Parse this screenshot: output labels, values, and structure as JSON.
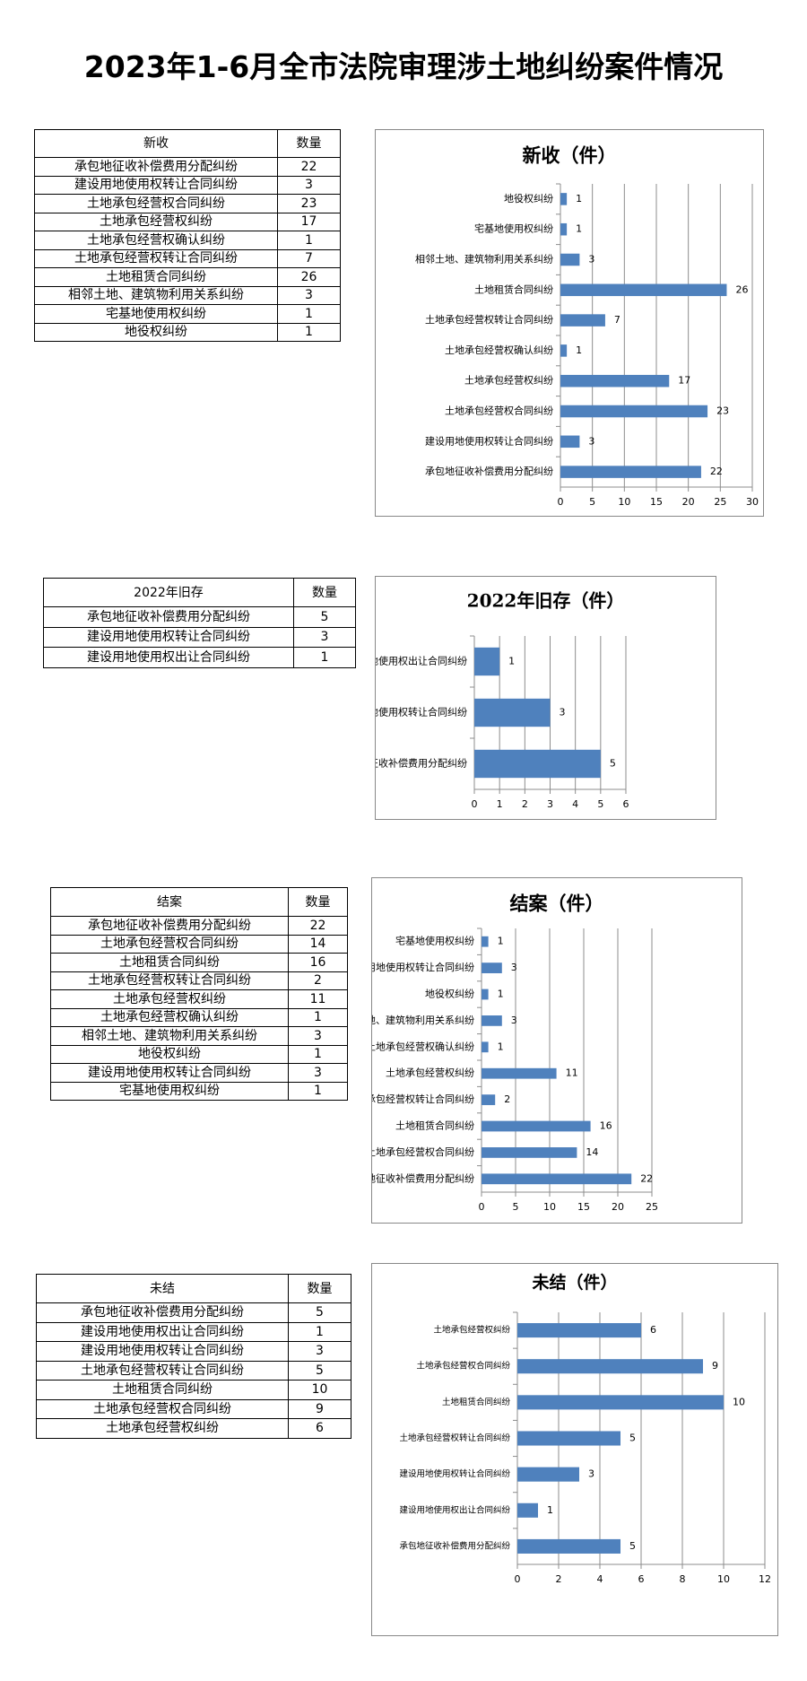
{
  "title": "2023年1-6月全市法院审理涉土地纠纷案件情况",
  "tables": [
    {
      "header": [
        "新收",
        "数量"
      ],
      "rows": [
        [
          "承包地征收补偿费用分配纠纷",
          "22"
        ],
        [
          "建设用地使用权转让合同纠纷",
          "3"
        ],
        [
          "土地承包经营权合同纠纷",
          "23"
        ],
        [
          "土地承包经营权纠纷",
          "17"
        ],
        [
          "土地承包经营权确认纠纷",
          "1"
        ],
        [
          "土地承包经营权转让合同纠纷",
          "7"
        ],
        [
          "土地租赁合同纠纷",
          "26"
        ],
        [
          "相邻土地、建筑物利用关系纠纷",
          "3"
        ],
        [
          "宅基地使用权纠纷",
          "1"
        ],
        [
          "地役权纠纷",
          "1"
        ]
      ]
    },
    {
      "header": [
        "2022年旧存",
        "数量"
      ],
      "rows": [
        [
          "承包地征收补偿费用分配纠纷",
          "5"
        ],
        [
          "建设用地使用权转让合同纠纷",
          "3"
        ],
        [
          "建设用地使用权出让合同纠纷",
          "1"
        ]
      ]
    },
    {
      "header": [
        "结案",
        "数量"
      ],
      "rows": [
        [
          "承包地征收补偿费用分配纠纷",
          "22"
        ],
        [
          "土地承包经营权合同纠纷",
          "14"
        ],
        [
          "土地租赁合同纠纷",
          "16"
        ],
        [
          "土地承包经营权转让合同纠纷",
          "2"
        ],
        [
          "土地承包经营权纠纷",
          "11"
        ],
        [
          "土地承包经营权确认纠纷",
          "1"
        ],
        [
          "相邻土地、建筑物利用关系纠纷",
          "3"
        ],
        [
          "地役权纠纷",
          "1"
        ],
        [
          "建设用地使用权转让合同纠纷",
          "3"
        ],
        [
          "宅基地使用权纠纷",
          "1"
        ]
      ]
    },
    {
      "header": [
        "未结",
        "数量"
      ],
      "rows": [
        [
          "承包地征收补偿费用分配纠纷",
          "5"
        ],
        [
          "建设用地使用权出让合同纠纷",
          "1"
        ],
        [
          "建设用地使用权转让合同纠纷",
          "3"
        ],
        [
          "土地承包经营权转让合同纠纷",
          "5"
        ],
        [
          "土地租赁合同纠纷",
          "10"
        ],
        [
          "土地承包经营权合同纠纷",
          "9"
        ],
        [
          "土地承包经营权纠纷",
          "6"
        ]
      ]
    }
  ],
  "chart_data": [
    {
      "type": "bar",
      "orientation": "horizontal",
      "title": "新收（件）",
      "bar_color": "#4f81bd",
      "grid": true,
      "xlim": [
        0,
        30
      ],
      "xticks": [
        0,
        5,
        10,
        15,
        20,
        25,
        30
      ],
      "categories": [
        "地役权纠纷",
        "宅基地使用权纠纷",
        "相邻土地、建筑物利用关系纠纷",
        "土地租赁合同纠纷",
        "土地承包经营权转让合同纠纷",
        "土地承包经营权确认纠纷",
        "土地承包经营权纠纷",
        "土地承包经营权合同纠纷",
        "建设用地使用权转让合同纠纷",
        "承包地征收补偿费用分配纠纷"
      ],
      "values": [
        1,
        1,
        3,
        26,
        7,
        1,
        17,
        23,
        3,
        22
      ]
    },
    {
      "type": "bar",
      "orientation": "horizontal",
      "title": "2022年旧存（件）",
      "bar_color": "#4f81bd",
      "grid": true,
      "xlim": [
        0,
        6
      ],
      "xticks": [
        0,
        1,
        2,
        3,
        4,
        5,
        6
      ],
      "categories": [
        "建设用地使用权出让合同纠纷",
        "建设用地使用权转让合同纠纷",
        "承包地征收补偿费用分配纠纷"
      ],
      "values": [
        1,
        3,
        5
      ]
    },
    {
      "type": "bar",
      "orientation": "horizontal",
      "title": "结案（件）",
      "bar_color": "#4f81bd",
      "grid": true,
      "xlim": [
        0,
        25
      ],
      "xticks": [
        0,
        5,
        10,
        15,
        20,
        25
      ],
      "categories": [
        "宅基地使用权纠纷",
        "建设用地使用权转让合同纠纷",
        "地役权纠纷",
        "相邻土地、建筑物利用关系纠纷",
        "土地承包经营权确认纠纷",
        "土地承包经营权纠纷",
        "土地承包经营权转让合同纠纷",
        "土地租赁合同纠纷",
        "土地承包经营权合同纠纷",
        "承包地征收补偿费用分配纠纷"
      ],
      "values": [
        1,
        3,
        1,
        3,
        1,
        11,
        2,
        16,
        14,
        22
      ]
    },
    {
      "type": "bar",
      "orientation": "horizontal",
      "title": "未结（件）",
      "bar_color": "#4f81bd",
      "grid": true,
      "xlim": [
        0,
        12
      ],
      "xticks": [
        0,
        2,
        4,
        6,
        8,
        10,
        12
      ],
      "categories": [
        "土地承包经营权纠纷",
        "土地承包经营权合同纠纷",
        "土地租赁合同纠纷",
        "土地承包经营权转让合同纠纷",
        "建设用地使用权转让合同纠纷",
        "建设用地使用权出让合同纠纷",
        "承包地征收补偿费用分配纠纷"
      ],
      "values": [
        6,
        9,
        10,
        5,
        3,
        1,
        5
      ]
    }
  ]
}
